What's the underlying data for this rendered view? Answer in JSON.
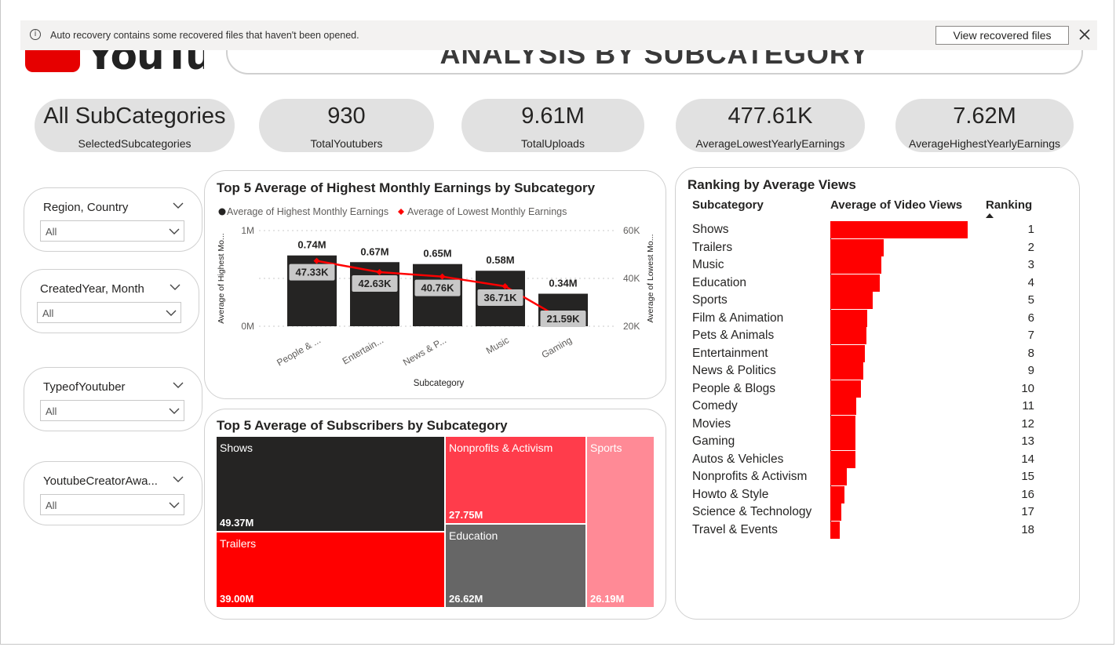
{
  "notification": {
    "message": "Auto recovery contains some recovered files that haven't been opened.",
    "button": "View recovered files"
  },
  "header": {
    "logo_text": "YouTube",
    "title": "ANALYSIS BY SUBCATEGORY"
  },
  "kpis": [
    {
      "value": "All SubCategories",
      "label": "SelectedSubcategories"
    },
    {
      "value": "930",
      "label": "TotalYoutubers"
    },
    {
      "value": "9.61M",
      "label": "TotalUploads"
    },
    {
      "value": "477.61K",
      "label": "AverageLowestYearlyEarnings"
    },
    {
      "value": "7.62M",
      "label": "AverageHighestYearlyEarnings"
    }
  ],
  "slicers": [
    {
      "label": "Region, Country",
      "value": "All"
    },
    {
      "label": "CreatedYear, Month",
      "value": "All"
    },
    {
      "label": "TypeofYoutuber",
      "value": "All"
    },
    {
      "label": "YoutubeCreatorAwa...",
      "value": "All"
    }
  ],
  "earnings_chart": {
    "title": "Top 5 Average of Highest Monthly Earnings by Subcategory",
    "legend": [
      "Average of Highest Monthly Earnings",
      "Average of Lowest Monthly Earnings"
    ],
    "xlabel": "Subcategory",
    "ylabel_left": "Average of Highest Mo...",
    "ylabel_right": "Average of Lowest Mo...",
    "left_ticks": [
      "1M",
      "0M"
    ],
    "right_ticks": [
      "60K",
      "40K",
      "20K"
    ]
  },
  "subscribers_chart": {
    "title": "Top 5 Average of Subscribers by Subcategory"
  },
  "ranking": {
    "title": "Ranking by Average Views",
    "col_subcategory": "Subcategory",
    "col_views": "Average of Video Views",
    "col_rank": "Ranking"
  },
  "chart_data": [
    {
      "type": "bar",
      "title": "Top 5 Average of Highest Monthly Earnings by Subcategory",
      "xlabel": "Subcategory",
      "categories": [
        "People & ...",
        "Entertain...",
        "News & P...",
        "Music",
        "Gaming"
      ],
      "series": [
        {
          "name": "Average of Highest Monthly Earnings",
          "type": "bar",
          "values": [
            0.74,
            0.67,
            0.65,
            0.58,
            0.34
          ],
          "labels": [
            "0.74M",
            "0.67M",
            "0.65M",
            "0.58M",
            "0.34M"
          ],
          "unit": "M"
        },
        {
          "name": "Average of Lowest Monthly Earnings",
          "type": "line",
          "values": [
            47.33,
            42.63,
            40.76,
            36.71,
            21.59
          ],
          "labels": [
            "47.33K",
            "42.63K",
            "40.76K",
            "36.71K",
            "21.59K"
          ],
          "unit": "K"
        }
      ],
      "ylim_left": [
        0,
        1
      ],
      "ylim_right": [
        20,
        60
      ],
      "colors": {
        "bar": "#252423",
        "line": "#ff0000"
      }
    },
    {
      "type": "treemap",
      "title": "Top 5 Average of Subscribers by Subcategory",
      "items": [
        {
          "name": "Shows",
          "value": 49.37,
          "label": "49.37M",
          "color": "#252423"
        },
        {
          "name": "Trailers",
          "value": 39.0,
          "label": "39.00M",
          "color": "#ff0000"
        },
        {
          "name": "Nonprofits & Activism",
          "value": 27.75,
          "label": "27.75M",
          "color": "#ff3c4b"
        },
        {
          "name": "Education",
          "value": 26.62,
          "label": "26.62M",
          "color": "#666666"
        },
        {
          "name": "Sports",
          "value": 26.19,
          "label": "26.19M",
          "color": "#ff8a96"
        }
      ]
    },
    {
      "type": "bar",
      "orientation": "horizontal",
      "title": "Ranking by Average Views",
      "categories": [
        "Shows",
        "Trailers",
        "Music",
        "Education",
        "Sports",
        "Film & Animation",
        "Pets & Animals",
        "Entertainment",
        "News & Politics",
        "People & Blogs",
        "Comedy",
        "Movies",
        "Gaming",
        "Autos & Vehicles",
        "Nonprofits & Activism",
        "Howto & Style",
        "Science & Technology",
        "Travel & Events"
      ],
      "values": [
        1.0,
        0.39,
        0.37,
        0.36,
        0.31,
        0.27,
        0.26,
        0.25,
        0.24,
        0.22,
        0.19,
        0.18,
        0.18,
        0.18,
        0.12,
        0.1,
        0.08,
        0.07
      ],
      "rankings": [
        1,
        2,
        3,
        4,
        5,
        6,
        7,
        8,
        9,
        10,
        11,
        12,
        13,
        14,
        15,
        16,
        17,
        18
      ],
      "color": "#ff0000"
    }
  ]
}
